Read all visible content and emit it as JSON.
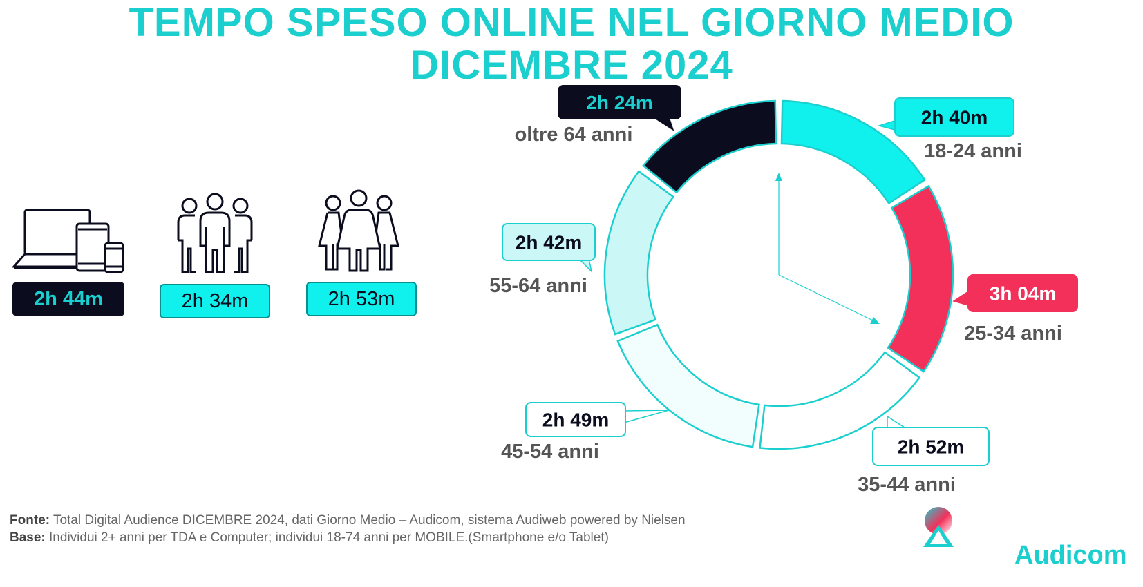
{
  "title_line1": "TEMPO SPESO ONLINE NEL GIORNO MEDIO",
  "title_line2": "DICEMBRE 2024",
  "summary": [
    {
      "icon": "devices-icon",
      "value": "2h 44m"
    },
    {
      "icon": "people-men-icon",
      "value": "2h 34m"
    },
    {
      "icon": "people-women-icon",
      "value": "2h 53m"
    }
  ],
  "chart_data": {
    "type": "pie",
    "style": "donut",
    "unit": "minutes",
    "slices": [
      {
        "label": "18-24 anni",
        "value_text": "2h 40m",
        "value": 160,
        "color": "#10f0ec",
        "text_color": "#0b0d1e"
      },
      {
        "label": "25-34 anni",
        "value_text": "3h 04m",
        "value": 184,
        "color": "#f2305a",
        "text_color": "#ffffff"
      },
      {
        "label": "35-44 anni",
        "value_text": "2h 52m",
        "value": 172,
        "color": "#ffffff",
        "text_color": "#0b0d1e"
      },
      {
        "label": "45-54 anni",
        "value_text": "2h 49m",
        "value": 169,
        "color": "#f2fdfd",
        "text_color": "#0b0d1e"
      },
      {
        "label": "55-64 anni",
        "value_text": "2h 42m",
        "value": 162,
        "color": "#ccf7f7",
        "text_color": "#0b0d1e"
      },
      {
        "label": "oltre 64 anni",
        "value_text": "2h 24m",
        "value": 144,
        "color": "#0b0d1e",
        "text_color": "#1ccfcf"
      }
    ]
  },
  "footer": {
    "fonte_label": "Fonte:",
    "fonte_text": " Total Digital Audience DICEMBRE 2024, dati Giorno Medio – Audicom, sistema Audiweb powered by Nielsen",
    "base_label": "Base:",
    "base_text": "  Individui 2+ anni per TDA e Computer; individui 18-74 anni per MOBILE.(Smartphone e/o Tablet)"
  },
  "brand": "Audicom",
  "colors": {
    "accent": "#1ccfcf",
    "dark": "#0b0d1e",
    "red": "#f2305a"
  }
}
